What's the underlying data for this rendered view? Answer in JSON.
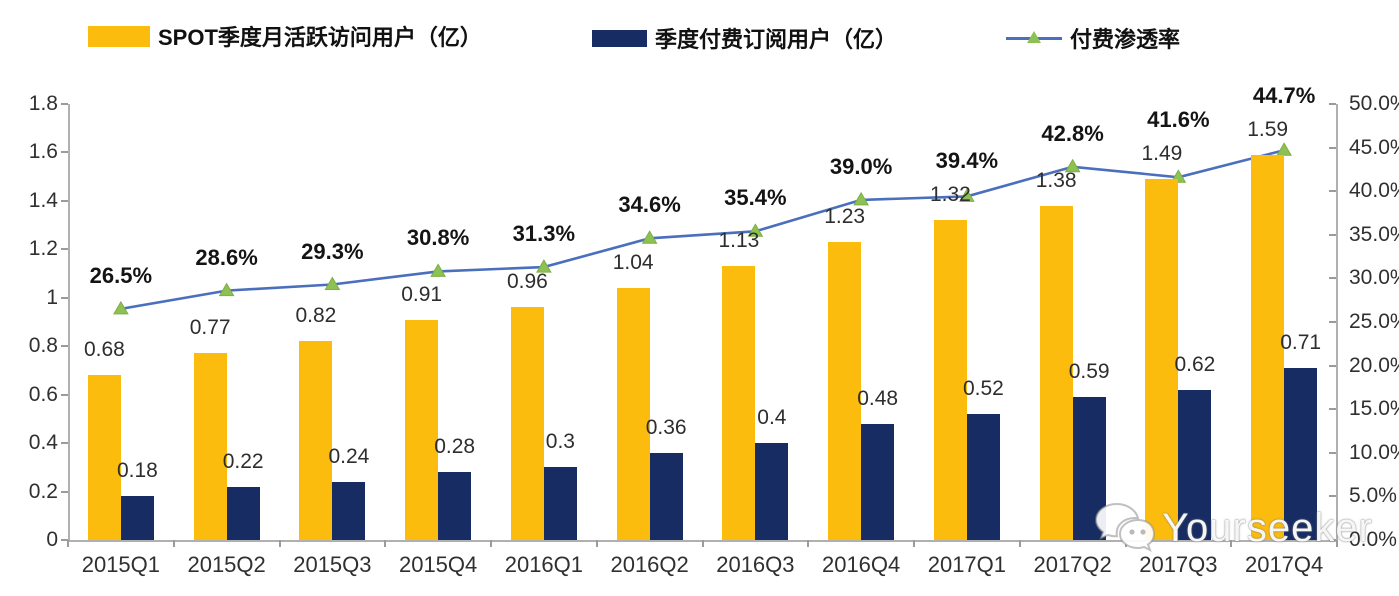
{
  "legend": {
    "items": [
      {
        "label": "SPOT季度月活跃访问用户（亿）",
        "type": "bar",
        "color": "#FBBC0E"
      },
      {
        "label": "季度付费订阅用户（亿）",
        "type": "bar",
        "color": "#162C63"
      },
      {
        "label": "付费渗透率",
        "type": "line",
        "color": "#4A6FBD",
        "marker_color": "#8DC153"
      }
    ]
  },
  "chart_data": {
    "type": "bar",
    "subtype": "grouped-bars-with-line-combo",
    "categories": [
      "2015Q1",
      "2015Q2",
      "2015Q3",
      "2015Q4",
      "2016Q1",
      "2016Q2",
      "2016Q3",
      "2016Q4",
      "2017Q1",
      "2017Q2",
      "2017Q3",
      "2017Q4"
    ],
    "series": [
      {
        "name": "SPOT季度月活跃访问用户（亿）",
        "axis": "left",
        "type": "bar",
        "color": "#FBBC0E",
        "values": [
          0.68,
          0.77,
          0.82,
          0.91,
          0.96,
          1.04,
          1.13,
          1.23,
          1.32,
          1.38,
          1.49,
          1.59
        ],
        "labels": [
          "0.68",
          "0.77",
          "0.82",
          "0.91",
          "0.96",
          "1.04",
          "1.13",
          "1.23",
          "1.32",
          "1.38",
          "1.49",
          "1.59"
        ]
      },
      {
        "name": "季度付费订阅用户（亿）",
        "axis": "left",
        "type": "bar",
        "color": "#162C63",
        "values": [
          0.18,
          0.22,
          0.24,
          0.28,
          0.3,
          0.36,
          0.4,
          0.48,
          0.52,
          0.59,
          0.62,
          0.71
        ],
        "labels": [
          "0.18",
          "0.22",
          "0.24",
          "0.28",
          "0.3",
          "0.36",
          "0.4",
          "0.48",
          "0.52",
          "0.59",
          "0.62",
          "0.71"
        ]
      },
      {
        "name": "付费渗透率",
        "axis": "right",
        "type": "line",
        "color": "#4A6FBD",
        "marker": "triangle",
        "marker_color": "#8DC153",
        "values": [
          26.5,
          28.6,
          29.3,
          30.8,
          31.3,
          34.6,
          35.4,
          39.0,
          39.4,
          42.8,
          41.6,
          44.7
        ],
        "labels": [
          "26.5%",
          "28.6%",
          "29.3%",
          "30.8%",
          "31.3%",
          "34.6%",
          "35.4%",
          "39.0%",
          "39.4%",
          "42.8%",
          "41.6%",
          "44.7%"
        ]
      }
    ],
    "left_axis": {
      "min": 0,
      "max": 1.8,
      "ticks": [
        "1.8",
        "1.6",
        "1.4",
        "1.2",
        "1",
        "0.8",
        "0.6",
        "0.4",
        "0.2",
        "0"
      ],
      "tick_values": [
        1.8,
        1.6,
        1.4,
        1.2,
        1.0,
        0.8,
        0.6,
        0.4,
        0.2,
        0
      ]
    },
    "right_axis": {
      "min": 0,
      "max": 50,
      "ticks": [
        "50.0%",
        "45.0%",
        "40.0%",
        "35.0%",
        "30.0%",
        "25.0%",
        "20.0%",
        "15.0%",
        "10.0%",
        "5.0%",
        "0.0%"
      ],
      "tick_values": [
        50,
        45,
        40,
        35,
        30,
        25,
        20,
        15,
        10,
        5,
        0
      ]
    },
    "grid": false,
    "legend_position": "top",
    "title": ""
  },
  "watermark": {
    "text": "Yourseeker",
    "icon": "wechat-icon"
  }
}
